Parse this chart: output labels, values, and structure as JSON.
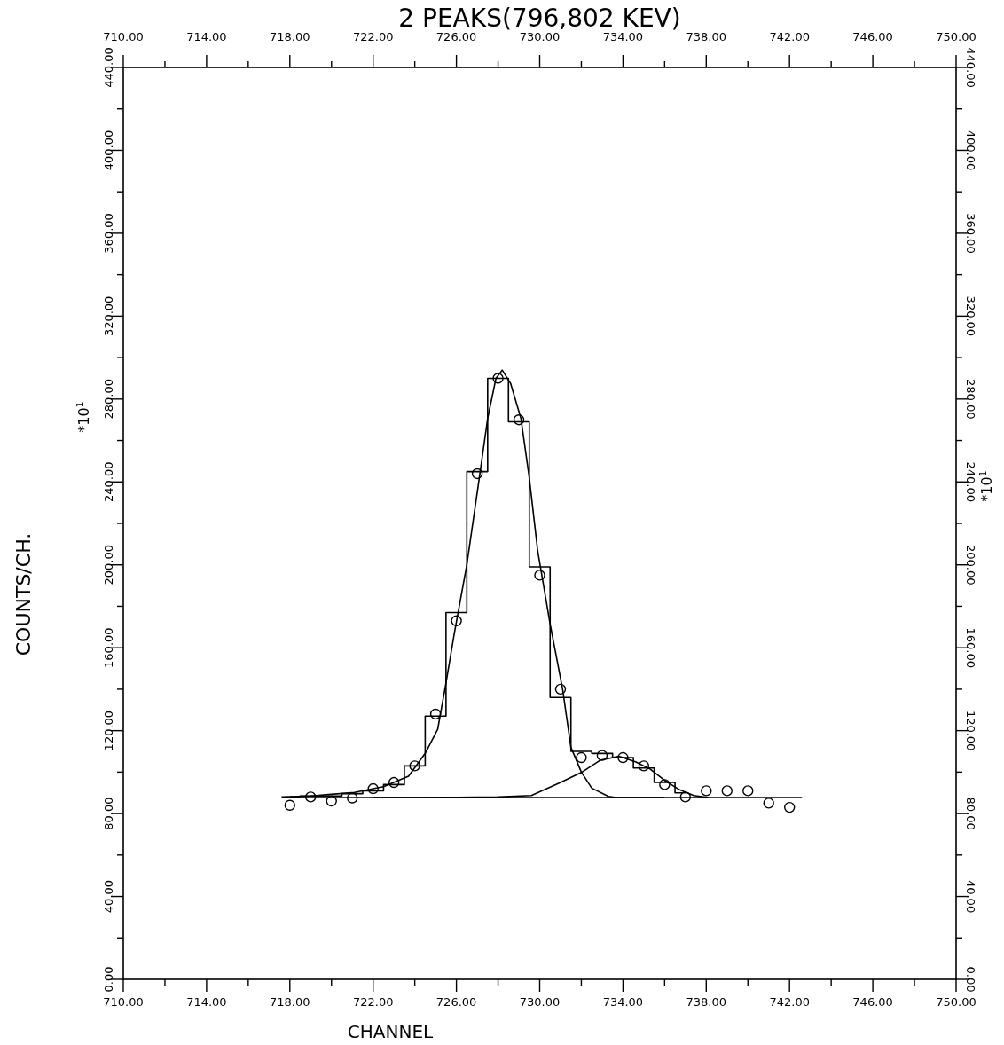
{
  "chart_data": {
    "type": "line",
    "title": "2 PEAKS(796,802 KEV)",
    "xlabel": "CHANNEL",
    "ylabel": "COUNTS/CH.",
    "annotations": [
      "*10$^{1}$",
      "*10$^{1}$"
    ],
    "xlim": [
      710,
      750
    ],
    "xticks": [
      {
        "value": 710,
        "label": "710.00"
      },
      {
        "value": 712,
        "label": null
      },
      {
        "value": 714,
        "label": "714.00"
      },
      {
        "value": 716,
        "label": null
      },
      {
        "value": 718,
        "label": "718.00"
      },
      {
        "value": 720,
        "label": null
      },
      {
        "value": 722,
        "label": "722.00"
      },
      {
        "value": 724,
        "label": null
      },
      {
        "value": 726,
        "label": "726.00"
      },
      {
        "value": 728,
        "label": null
      },
      {
        "value": 730,
        "label": "730.00"
      },
      {
        "value": 732,
        "label": null
      },
      {
        "value": 734,
        "label": "734.00"
      },
      {
        "value": 736,
        "label": null
      },
      {
        "value": 738,
        "label": "738.00"
      },
      {
        "value": 740,
        "label": null
      },
      {
        "value": 742,
        "label": "742.00"
      },
      {
        "value": 744,
        "label": null
      },
      {
        "value": 746,
        "label": "746.00"
      },
      {
        "value": 748,
        "label": null
      },
      {
        "value": 750,
        "label": "750.00"
      }
    ],
    "x2lim": [
      710,
      750
    ],
    "x2ticks": [
      {
        "value": 710,
        "label": "710.00"
      },
      {
        "value": 712,
        "label": null
      },
      {
        "value": 714,
        "label": "714.00"
      },
      {
        "value": 716,
        "label": null
      },
      {
        "value": 718,
        "label": "718.00"
      },
      {
        "value": 720,
        "label": null
      },
      {
        "value": 722,
        "label": "722.00"
      },
      {
        "value": 724,
        "label": null
      },
      {
        "value": 726,
        "label": "726.00"
      },
      {
        "value": 728,
        "label": null
      },
      {
        "value": 730,
        "label": "730.00"
      },
      {
        "value": 732,
        "label": null
      },
      {
        "value": 734,
        "label": "734.00"
      },
      {
        "value": 736,
        "label": null
      },
      {
        "value": 738,
        "label": "738.00"
      },
      {
        "value": 740,
        "label": null
      },
      {
        "value": 742,
        "label": "742.00"
      },
      {
        "value": 744,
        "label": null
      },
      {
        "value": 746,
        "label": "746.00"
      },
      {
        "value": 748,
        "label": null
      },
      {
        "value": 750,
        "label": "750.00"
      }
    ],
    "ylim": [
      0,
      440
    ],
    "yticks": [
      {
        "value": 0,
        "label": "0.00"
      },
      {
        "value": 20,
        "label": null
      },
      {
        "value": 40,
        "label": "40.00"
      },
      {
        "value": 60,
        "label": null
      },
      {
        "value": 80,
        "label": "80.00"
      },
      {
        "value": 100,
        "label": null
      },
      {
        "value": 120,
        "label": "120.00"
      },
      {
        "value": 140,
        "label": null
      },
      {
        "value": 160,
        "label": "160.00"
      },
      {
        "value": 180,
        "label": null
      },
      {
        "value": 200,
        "label": "200.00"
      },
      {
        "value": 220,
        "label": null
      },
      {
        "value": 240,
        "label": "240.00"
      },
      {
        "value": 260,
        "label": null
      },
      {
        "value": 280,
        "label": "280.00"
      },
      {
        "value": 300,
        "label": null
      },
      {
        "value": 320,
        "label": "320.00"
      },
      {
        "value": 340,
        "label": null
      },
      {
        "value": 360,
        "label": "360.00"
      },
      {
        "value": 380,
        "label": null
      },
      {
        "value": 400,
        "label": "400.00"
      },
      {
        "value": 420,
        "label": null
      },
      {
        "value": 440,
        "label": "440.00"
      }
    ],
    "y2lim": [
      0,
      440
    ],
    "y2ticks": [
      {
        "value": 0,
        "label": "0.00"
      },
      {
        "value": 20,
        "label": null
      },
      {
        "value": 40,
        "label": "40.00"
      },
      {
        "value": 60,
        "label": null
      },
      {
        "value": 80,
        "label": "80.00"
      },
      {
        "value": 100,
        "label": null
      },
      {
        "value": 120,
        "label": "120.00"
      },
      {
        "value": 140,
        "label": null
      },
      {
        "value": 160,
        "label": "160.00"
      },
      {
        "value": 180,
        "label": null
      },
      {
        "value": 200,
        "label": "200.00"
      },
      {
        "value": 220,
        "label": null
      },
      {
        "value": 240,
        "label": "240.00"
      },
      {
        "value": 260,
        "label": null
      },
      {
        "value": 280,
        "label": "280.00"
      },
      {
        "value": 300,
        "label": null
      },
      {
        "value": 320,
        "label": "320.00"
      },
      {
        "value": 340,
        "label": null
      },
      {
        "value": 360,
        "label": "360.00"
      },
      {
        "value": 380,
        "label": null
      },
      {
        "value": 400,
        "label": "400.00"
      },
      {
        "value": 420,
        "label": null
      },
      {
        "value": 440,
        "label": "440.00"
      }
    ],
    "series": [
      {
        "type": "step",
        "color": "#000000",
        "marker": "none",
        "x": [
          718,
          719,
          720,
          721,
          722,
          723,
          724,
          725,
          726,
          727,
          728,
          729,
          730,
          731,
          732,
          733,
          734,
          735,
          736,
          737
        ],
        "values": [
          88,
          88.5,
          88.5,
          89.6,
          91,
          94,
          103,
          127,
          177,
          245,
          290,
          269,
          199,
          136,
          110,
          109,
          107,
          102,
          95,
          90
        ]
      },
      {
        "type": "scatter",
        "color": "#000000",
        "marker": "circle",
        "x": [
          718,
          719,
          720,
          721,
          722,
          723,
          724,
          725,
          726,
          727,
          728,
          729,
          730,
          731,
          732,
          733,
          734,
          735,
          736,
          737,
          738,
          739,
          740,
          741,
          742
        ],
        "values": [
          84,
          88,
          86,
          87.5,
          92,
          95,
          103,
          128,
          173,
          244,
          290,
          270,
          195,
          140,
          107,
          108,
          107,
          103,
          94,
          88,
          91,
          91,
          91,
          85,
          83
        ]
      },
      {
        "type": "line",
        "color": "#000000",
        "marker": "none",
        "x": [
          717.6,
          719,
          720,
          721.1,
          722.5,
          723.7,
          724.5,
          725.1,
          725.5,
          725.9,
          726.5,
          727.1,
          727.5,
          727.9,
          728.2,
          728.6,
          729.1,
          729.5,
          729.9,
          730.5,
          731.1,
          731.5,
          732,
          732.5,
          733.3,
          733.6,
          736
        ],
        "values": [
          88,
          88.5,
          89.3,
          90.2,
          93,
          98,
          109,
          120.6,
          143,
          167,
          200,
          242,
          270.6,
          290,
          294,
          287.6,
          270.6,
          242,
          207,
          171.5,
          140,
          112,
          100,
          92.3,
          88.3,
          87.8,
          87.7
        ]
      },
      {
        "type": "line",
        "color": "#000000",
        "marker": "none",
        "x": [
          722,
          724,
          726,
          728,
          729.6,
          731,
          732,
          732.9,
          733.8,
          734.6,
          735.3,
          736,
          736.7,
          737.4,
          738.1
        ],
        "values": [
          87.7,
          87.7,
          87.8,
          88,
          88.7,
          95,
          99.8,
          105.7,
          107.6,
          105,
          101.5,
          96,
          91.6,
          88.7,
          87.7
        ]
      },
      {
        "type": "line",
        "color": "#000000",
        "marker": "none",
        "x": [
          718,
          742.6
        ],
        "values": [
          87.7,
          87.7
        ]
      }
    ]
  }
}
